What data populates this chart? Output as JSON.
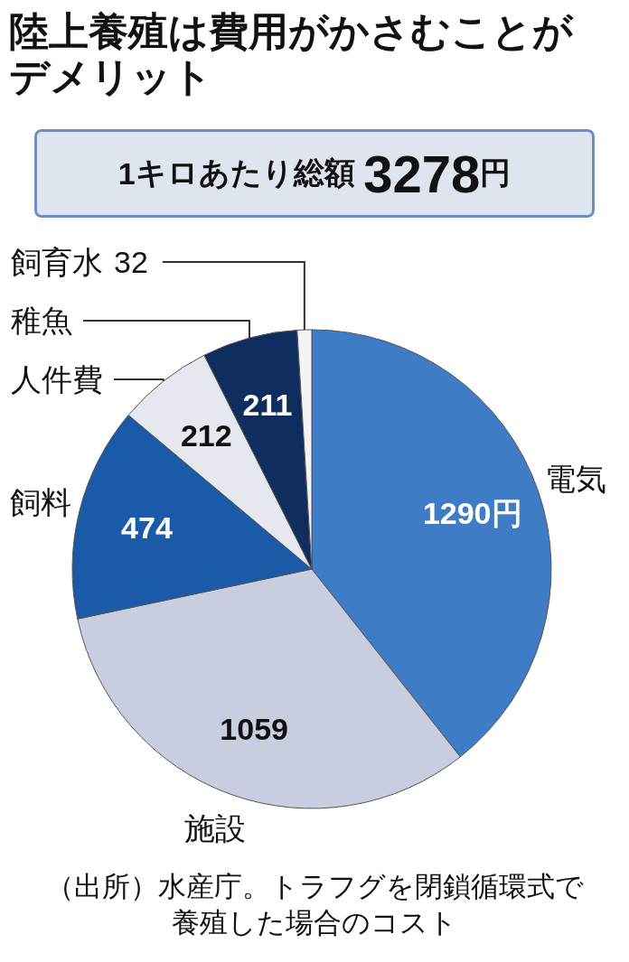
{
  "chart_data": {
    "type": "pie",
    "title": "陸上養殖は費用がかさむことがデメリット",
    "subtitle": "1キロあたり総額 3278円",
    "categories": [
      "電気",
      "施設",
      "飼料",
      "人件費",
      "稚魚",
      "飼育水"
    ],
    "values": [
      1290,
      1059,
      474,
      212,
      211,
      32
    ],
    "colors": [
      "#3f7cc6",
      "#c8cee0",
      "#1b5aa6",
      "#e6e8f0",
      "#0f2d5e",
      "#f4f4f8"
    ],
    "value_labels": [
      "1290円",
      "1059",
      "474",
      "212",
      "211",
      "32"
    ],
    "annotations": [
      "（出所）水産庁。トラフグを閉鎖循環式で養殖した場合のコスト"
    ]
  }
}
